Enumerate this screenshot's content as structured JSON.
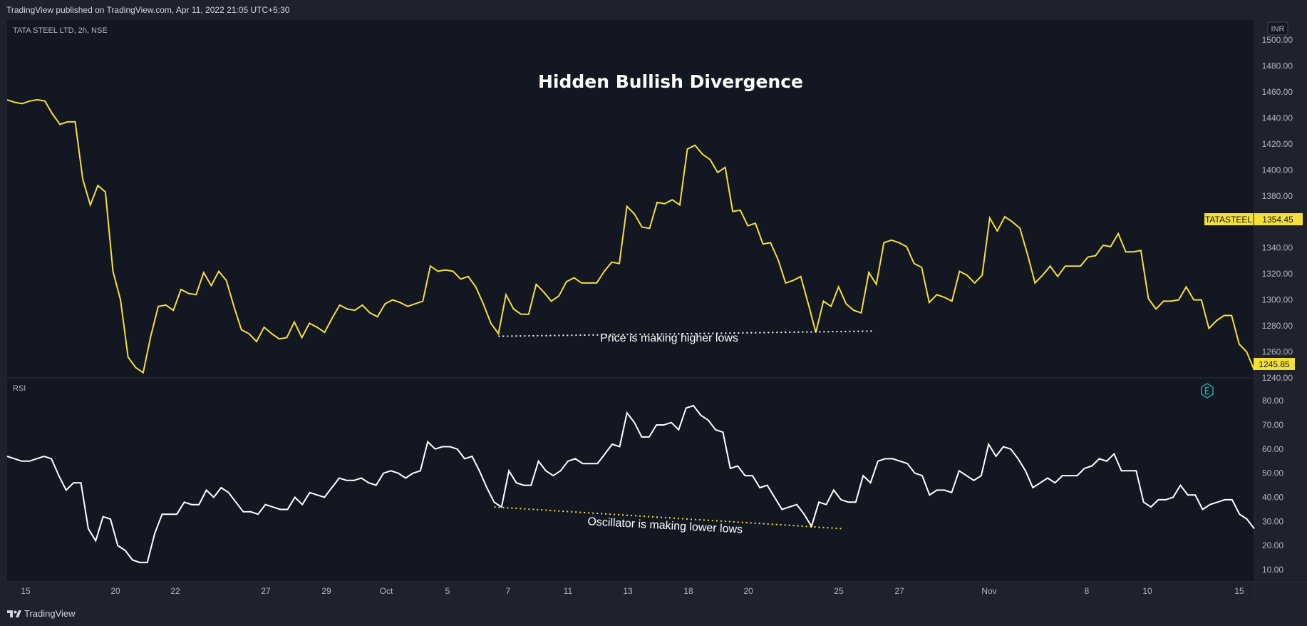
{
  "header": {
    "publish_text": "TradingView published on TradingView.com, Apr 11, 2022 21:05 UTC+5:30"
  },
  "footer": {
    "brand": "TradingView"
  },
  "colors": {
    "background": "#131722",
    "frame": "#1e222d",
    "price_line": "#f5e03a",
    "rsi_line": "#ffffff",
    "tag_bg": "#f5e03a",
    "axis_text": "#b2b5be"
  },
  "chart_data": {
    "type": "line",
    "symbol_label": "TATA STEEL LTD, 2h, NSE",
    "currency": "INR",
    "title": "Hidden Bullish Divergence",
    "x_tick_labels": [
      "15",
      "20",
      "22",
      "27",
      "29",
      "Oct",
      "5",
      "7",
      "11",
      "13",
      "18",
      "20",
      "25",
      "27",
      "Nov",
      "8",
      "10",
      "15"
    ],
    "price": {
      "name": "TATASTEEL",
      "last_label": "1354.45",
      "current_label": "1245.85",
      "ylim": [
        1240,
        1500
      ],
      "y_tick_labels": [
        "1500.00",
        "1480.00",
        "1460.00",
        "1440.00",
        "1420.00",
        "1400.00",
        "1380.00",
        "1360.00",
        "1340.00",
        "1320.00",
        "1300.00",
        "1280.00",
        "1260.00",
        "1240.00"
      ],
      "values": [
        1454,
        1452,
        1451,
        1453,
        1454,
        1453,
        1443,
        1435,
        1437,
        1437,
        1393,
        1373,
        1388,
        1383,
        1322,
        1300,
        1256,
        1248,
        1244,
        1272,
        1295,
        1296,
        1292,
        1308,
        1305,
        1304,
        1321,
        1311,
        1322,
        1315,
        1295,
        1277,
        1274,
        1268,
        1279,
        1274,
        1270,
        1271,
        1283,
        1271,
        1282,
        1279,
        1275,
        1286,
        1296,
        1293,
        1292,
        1296,
        1290,
        1287,
        1297,
        1300,
        1298,
        1295,
        1297,
        1299,
        1326,
        1322,
        1323,
        1322,
        1316,
        1318,
        1310,
        1297,
        1282,
        1274,
        1304,
        1293,
        1289,
        1289,
        1312,
        1306,
        1299,
        1303,
        1314,
        1317,
        1313,
        1313,
        1313,
        1322,
        1329,
        1328,
        1372,
        1366,
        1356,
        1355,
        1375,
        1374,
        1377,
        1373,
        1416,
        1419,
        1412,
        1408,
        1398,
        1402,
        1368,
        1369,
        1357,
        1359,
        1343,
        1344,
        1331,
        1313,
        1315,
        1318,
        1297,
        1275,
        1299,
        1295,
        1310,
        1297,
        1292,
        1290,
        1321,
        1312,
        1344,
        1346,
        1344,
        1341,
        1328,
        1325,
        1298,
        1304,
        1302,
        1299,
        1322,
        1319,
        1313,
        1319,
        1363,
        1353,
        1364,
        1360,
        1355,
        1335,
        1313,
        1319,
        1326,
        1318,
        1326,
        1326,
        1326,
        1333,
        1334,
        1342,
        1341,
        1351,
        1337,
        1337,
        1338,
        1301,
        1293,
        1299,
        1299,
        1300,
        1310,
        1300,
        1300,
        1278,
        1284,
        1288,
        1288,
        1266,
        1260,
        1245.85
      ]
    },
    "rsi": {
      "name": "RSI",
      "ylim": [
        5,
        83
      ],
      "y_tick_labels": [
        "80.00",
        "70.00",
        "60.00",
        "50.00",
        "40.00",
        "30.00",
        "20.00",
        "10.00"
      ],
      "values": [
        57,
        56,
        55,
        55,
        56,
        57,
        56,
        49,
        43,
        46,
        46,
        27,
        22,
        32,
        31,
        20,
        18,
        14,
        13,
        13,
        25,
        33,
        33,
        33,
        38,
        37,
        37,
        43,
        40,
        44,
        42,
        38,
        34,
        34,
        33,
        37,
        36,
        35,
        35,
        40,
        37,
        42,
        41,
        40,
        44,
        48,
        47,
        47,
        48,
        46,
        45,
        50,
        51,
        50,
        48,
        50,
        51,
        63,
        60,
        61,
        61,
        60,
        56,
        57,
        51,
        44,
        38,
        36,
        51,
        46,
        45,
        45,
        55,
        51,
        49,
        51,
        55,
        56,
        54,
        54,
        54,
        58,
        62,
        61,
        75,
        71,
        65,
        65,
        70,
        70,
        71,
        68,
        77,
        78,
        74,
        72,
        68,
        67,
        52,
        53,
        49,
        49,
        44,
        45,
        40,
        35,
        36,
        37,
        33,
        28,
        38,
        37,
        43,
        39,
        38,
        38,
        49,
        46,
        55,
        56,
        56,
        55,
        54,
        50,
        49,
        41,
        43,
        43,
        42,
        51,
        49,
        47,
        49,
        62,
        57,
        61,
        60,
        56,
        51,
        44,
        46,
        48,
        46,
        49,
        49,
        49,
        52,
        53,
        56,
        55,
        58,
        51,
        51,
        51,
        38,
        36,
        39,
        39,
        40,
        45,
        41,
        41,
        35,
        37,
        38,
        39,
        39,
        33,
        31,
        27
      ]
    },
    "annotations": {
      "price_note": "Price is making higher lows",
      "rsi_note": "Oscillator is making lower lows",
      "price_line": {
        "from_index": 65,
        "to_index": 113,
        "y_start": 1272,
        "y_end": 1276
      },
      "rsi_line": {
        "from_index": 66,
        "to_index": 111,
        "y_start": 36,
        "y_end": 27
      }
    },
    "grid": false,
    "legend": "none"
  }
}
